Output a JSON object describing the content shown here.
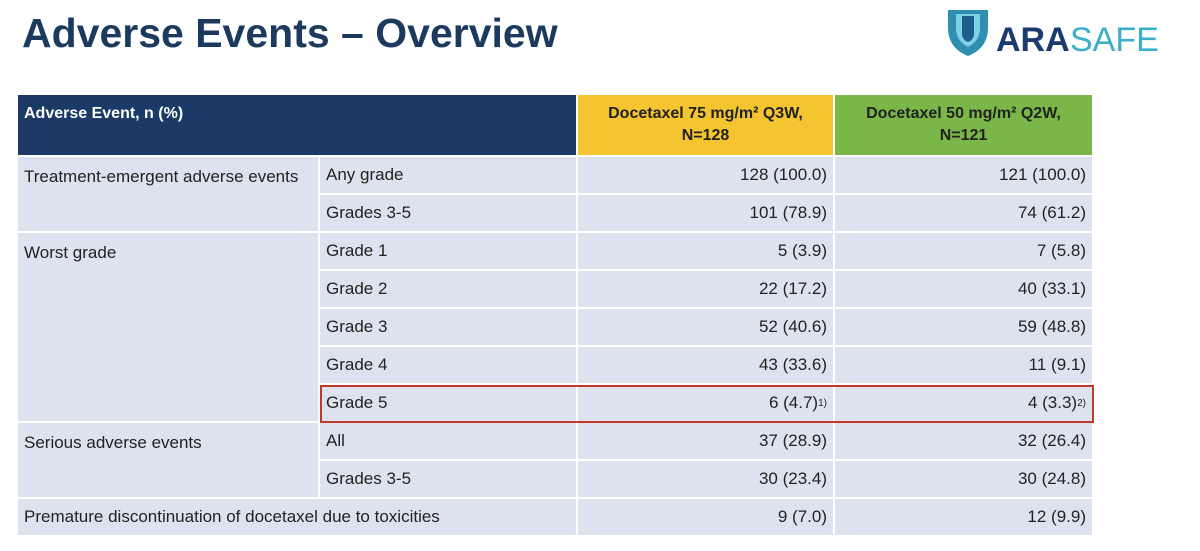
{
  "header": {
    "title": "Adverse Events – Overview",
    "logo": [
      "ARA",
      "SAFE"
    ]
  },
  "table": {
    "columns": [
      [
        "Adverse Event, n (%)"
      ],
      [
        "Docetaxel 75 mg/m² Q3W,",
        "N=128"
      ],
      [
        "Docetaxel 50 mg/m² Q2W,",
        "N=121"
      ]
    ],
    "groups": [
      {
        "label": "Treatment-emergent adverse events",
        "rows": [
          {
            "label": "Any grade",
            "arm1": "128 (100.0)",
            "arm2": "121 (100.0)"
          },
          {
            "label": "Grades 3-5",
            "arm1": "101 (78.9)",
            "arm2": "74 (61.2)"
          }
        ]
      },
      {
        "label": "Worst grade",
        "rows": [
          {
            "label": "Grade 1",
            "arm1": "5 (3.9)",
            "arm2": "7 (5.8)"
          },
          {
            "label": "Grade 2",
            "arm1": "22 (17.2)",
            "arm2": "40 (33.1)"
          },
          {
            "label": "Grade 3",
            "arm1": "52 (40.6)",
            "arm2": "59 (48.8)"
          },
          {
            "label": "Grade 4",
            "arm1": "43 (33.6)",
            "arm2": "11 (9.1)"
          },
          {
            "label": "Grade 5",
            "arm1": "6 (4.7)",
            "arm1_note": "1)",
            "arm2": "4 (3.3)",
            "arm2_note": "2)"
          }
        ]
      },
      {
        "label": "Serious adverse events",
        "rows": [
          {
            "label": "All",
            "arm1": "37 (28.9)",
            "arm2": "32 (26.4)"
          },
          {
            "label": "Grades 3-5",
            "arm1": "30 (23.4)",
            "arm2": "30 (24.8)"
          }
        ]
      },
      {
        "label": "Premature discontinuation of docetaxel due to toxicities",
        "rows": [
          {
            "arm1": "9 (7.0)",
            "arm2": "12 (9.9)"
          }
        ]
      }
    ]
  }
}
